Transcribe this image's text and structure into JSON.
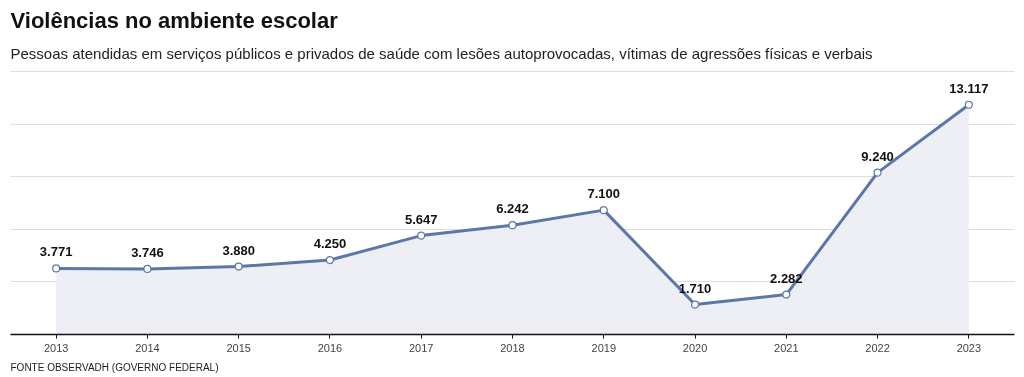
{
  "chart_data": {
    "type": "area",
    "title": "Violências no ambiente escolar",
    "subtitle": "Pessoas atendidas em serviços públicos e privados de saúde com lesões autoprovocadas, vítimas de agressões físicas e verbais",
    "categories": [
      "2013",
      "2014",
      "2015",
      "2016",
      "2017",
      "2018",
      "2019",
      "2020",
      "2021",
      "2022",
      "2023"
    ],
    "series": [
      {
        "color": "#5b77aa",
        "values": [
          3771,
          3746,
          3880,
          4250,
          5647,
          6242,
          7100,
          1710,
          2282,
          9240,
          13117
        ],
        "value_labels": [
          "3.771",
          "3.746",
          "3.880",
          "4.250",
          "5.647",
          "6.242",
          "7.100",
          "1.710",
          "2.282",
          "9.240",
          "13.117"
        ]
      }
    ],
    "yticks": [
      {
        "value": 0,
        "label": null
      },
      {
        "value": 3000,
        "label": null
      },
      {
        "value": 6000,
        "label": null
      },
      {
        "value": 9000,
        "label": null
      },
      {
        "value": 12000,
        "label": null
      },
      {
        "value": 15000,
        "label": null
      }
    ],
    "grid": "y",
    "tick_labels": "x",
    "marker": "circle",
    "annotations": [
      "FONTE OBSERVADH (GOVERNO FEDERAL)"
    ]
  }
}
